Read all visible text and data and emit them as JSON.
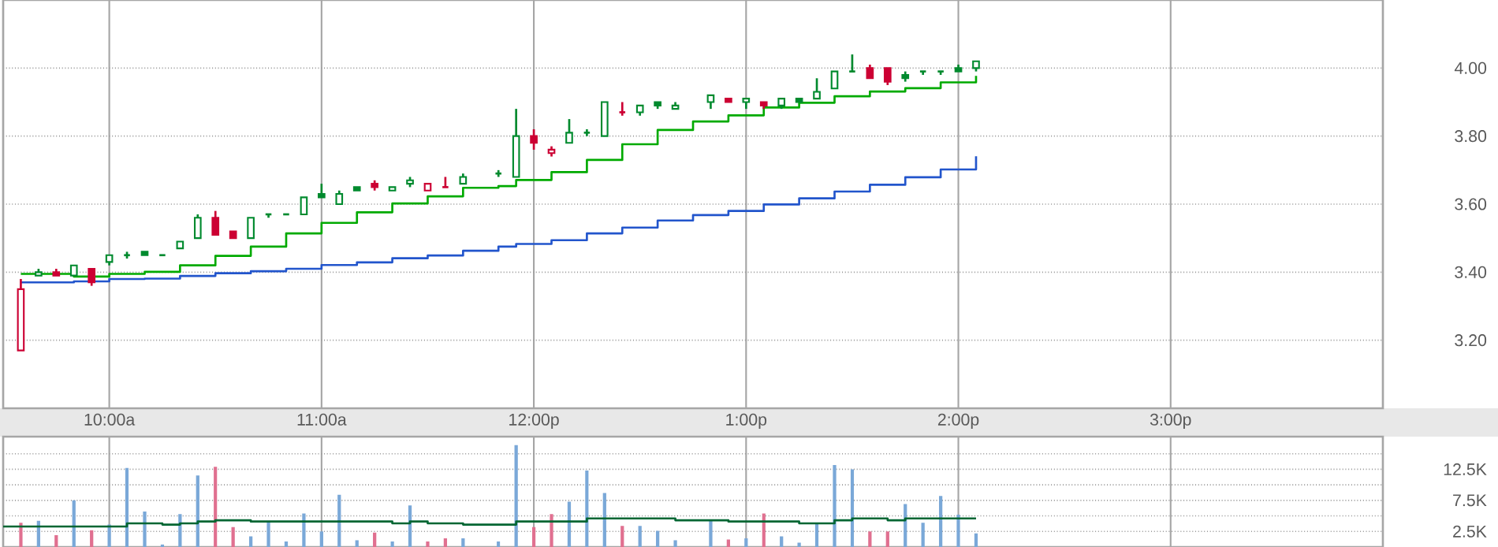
{
  "chart_data": [
    {
      "type": "candlestick",
      "x": [
        9.5833,
        9.6667,
        9.75,
        9.8333,
        9.9167,
        10.0,
        10.0833,
        10.1667,
        10.25,
        10.3333,
        10.4167,
        10.5,
        10.5833,
        10.6667,
        10.75,
        10.8333,
        10.9167,
        11.0,
        11.0833,
        11.1667,
        11.25,
        11.3333,
        11.4167,
        11.5,
        11.5833,
        11.6667,
        11.8333,
        11.9167,
        12.0,
        12.0833,
        12.1667,
        12.25,
        12.3333,
        12.4167,
        12.5,
        12.5833,
        12.6667,
        12.8333,
        12.9167,
        13.0,
        13.0833,
        13.1667,
        13.25,
        13.3333,
        13.4167,
        13.5,
        13.5833,
        13.6667,
        13.75,
        13.8333,
        13.9167,
        14.0,
        14.0833
      ],
      "ohlc": [
        [
          3.17,
          3.38,
          3.17,
          3.35
        ],
        [
          3.39,
          3.41,
          3.39,
          3.4
        ],
        [
          3.4,
          3.41,
          3.39,
          3.39
        ],
        [
          3.39,
          3.42,
          3.39,
          3.42
        ],
        [
          3.41,
          3.41,
          3.36,
          3.37
        ],
        [
          3.43,
          3.45,
          3.42,
          3.45
        ],
        [
          3.45,
          3.46,
          3.44,
          3.45
        ],
        [
          3.46,
          3.46,
          3.45,
          3.45
        ],
        [
          3.45,
          3.45,
          3.45,
          3.45
        ],
        [
          3.47,
          3.49,
          3.47,
          3.49
        ],
        [
          3.5,
          3.57,
          3.5,
          3.56
        ],
        [
          3.56,
          3.58,
          3.51,
          3.51
        ],
        [
          3.52,
          3.52,
          3.5,
          3.5
        ],
        [
          3.5,
          3.56,
          3.5,
          3.56
        ],
        [
          3.57,
          3.57,
          3.56,
          3.57
        ],
        [
          3.57,
          3.57,
          3.57,
          3.57
        ],
        [
          3.57,
          3.62,
          3.57,
          3.62
        ],
        [
          3.63,
          3.66,
          3.62,
          3.62
        ],
        [
          3.6,
          3.64,
          3.6,
          3.63
        ],
        [
          3.65,
          3.65,
          3.64,
          3.64
        ],
        [
          3.66,
          3.67,
          3.64,
          3.65
        ],
        [
          3.64,
          3.65,
          3.64,
          3.65
        ],
        [
          3.66,
          3.68,
          3.65,
          3.67
        ],
        [
          3.64,
          3.66,
          3.64,
          3.66
        ],
        [
          3.65,
          3.68,
          3.65,
          3.65
        ],
        [
          3.66,
          3.69,
          3.66,
          3.68
        ],
        [
          3.69,
          3.7,
          3.68,
          3.69
        ],
        [
          3.68,
          3.88,
          3.68,
          3.8
        ],
        [
          3.8,
          3.82,
          3.76,
          3.78
        ],
        [
          3.75,
          3.77,
          3.74,
          3.76
        ],
        [
          3.78,
          3.85,
          3.78,
          3.81
        ],
        [
          3.81,
          3.82,
          3.8,
          3.81
        ],
        [
          3.8,
          3.9,
          3.8,
          3.9
        ],
        [
          3.87,
          3.9,
          3.86,
          3.87
        ],
        [
          3.87,
          3.89,
          3.86,
          3.89
        ],
        [
          3.9,
          3.9,
          3.88,
          3.89
        ],
        [
          3.88,
          3.9,
          3.88,
          3.89
        ],
        [
          3.9,
          3.92,
          3.88,
          3.92
        ],
        [
          3.91,
          3.91,
          3.9,
          3.9
        ],
        [
          3.9,
          3.91,
          3.88,
          3.91
        ],
        [
          3.9,
          3.9,
          3.88,
          3.89
        ],
        [
          3.89,
          3.91,
          3.88,
          3.91
        ],
        [
          3.91,
          3.91,
          3.9,
          3.9
        ],
        [
          3.91,
          3.97,
          3.91,
          3.93
        ],
        [
          3.94,
          3.99,
          3.94,
          3.99
        ],
        [
          3.99,
          4.04,
          3.99,
          3.99
        ],
        [
          4.0,
          4.01,
          3.97,
          3.97
        ],
        [
          4.0,
          4.0,
          3.95,
          3.96
        ],
        [
          3.98,
          3.99,
          3.96,
          3.97
        ],
        [
          3.99,
          3.99,
          3.98,
          3.99
        ],
        [
          3.99,
          3.99,
          3.98,
          3.99
        ],
        [
          4.0,
          4.01,
          3.99,
          3.99
        ],
        [
          4.0,
          4.02,
          3.99,
          4.02
        ]
      ],
      "colors": [
        "#cc0033",
        "#008a2e",
        "#cc0033",
        "#008a2e",
        "#cc0033",
        "#008a2e",
        "#008a2e",
        "#008a2e",
        "#008a2e",
        "#008a2e",
        "#008a2e",
        "#cc0033",
        "#cc0033",
        "#008a2e",
        "#008a2e",
        "#008a2e",
        "#008a2e",
        "#008a2e",
        "#008a2e",
        "#008a2e",
        "#cc0033",
        "#008a2e",
        "#008a2e",
        "#cc0033",
        "#cc0033",
        "#008a2e",
        "#008a2e",
        "#008a2e",
        "#cc0033",
        "#cc0033",
        "#008a2e",
        "#008a2e",
        "#008a2e",
        "#cc0033",
        "#008a2e",
        "#008a2e",
        "#008a2e",
        "#008a2e",
        "#cc0033",
        "#008a2e",
        "#cc0033",
        "#008a2e",
        "#008a2e",
        "#008a2e",
        "#008a2e",
        "#008a2e",
        "#cc0033",
        "#cc0033",
        "#008a2e",
        "#008a2e",
        "#008a2e",
        "#008a2e",
        "#008a2e"
      ],
      "series": [
        {
          "type": "step",
          "color": "#00aa00",
          "x": [
            9.5833,
            9.8333,
            10.0,
            10.1667,
            10.3333,
            10.5,
            10.6667,
            10.8333,
            11.0,
            11.1667,
            11.3333,
            11.5,
            11.6667,
            11.8333,
            11.9167,
            12.0833,
            12.25,
            12.4167,
            12.5833,
            12.75,
            12.9167,
            13.0833,
            13.25,
            13.4167,
            13.5833,
            13.75,
            13.9167,
            14.0833
          ],
          "values": [
            3.395,
            3.387,
            3.395,
            3.401,
            3.42,
            3.448,
            3.475,
            3.514,
            3.545,
            3.576,
            3.602,
            3.623,
            3.648,
            3.653,
            3.671,
            3.694,
            3.73,
            3.776,
            3.818,
            3.843,
            3.861,
            3.884,
            3.898,
            3.917,
            3.931,
            3.941,
            3.958,
            3.977
          ]
        },
        {
          "type": "step",
          "color": "#2255cc",
          "x": [
            9.5833,
            9.8333,
            10.0,
            10.1667,
            10.3333,
            10.5,
            10.6667,
            10.8333,
            11.0,
            11.1667,
            11.3333,
            11.5,
            11.6667,
            11.8333,
            11.9167,
            12.0833,
            12.25,
            12.4167,
            12.5833,
            12.75,
            12.9167,
            13.0833,
            13.25,
            13.4167,
            13.5833,
            13.75,
            13.9167,
            14.0833
          ],
          "values": [
            3.37,
            3.373,
            3.38,
            3.381,
            3.389,
            3.397,
            3.403,
            3.41,
            3.421,
            3.429,
            3.441,
            3.449,
            3.463,
            3.475,
            3.483,
            3.494,
            3.514,
            3.531,
            3.552,
            3.568,
            3.58,
            3.599,
            3.617,
            3.637,
            3.657,
            3.679,
            3.702,
            3.741
          ]
        }
      ],
      "xlim": [
        9.5,
        16.0
      ],
      "xticks": [
        {
          "value": 10,
          "label": "10:00a"
        },
        {
          "value": 11,
          "label": "11:00a"
        },
        {
          "value": 12,
          "label": "12:00p"
        },
        {
          "value": 13,
          "label": "1:00p"
        },
        {
          "value": 14,
          "label": "2:00p"
        },
        {
          "value": 15,
          "label": "3:00p"
        }
      ],
      "ylim": [
        3.0,
        4.2
      ],
      "yticks": [
        {
          "value": 3.2,
          "label": "3.20"
        },
        {
          "value": 3.4,
          "label": "3.40"
        },
        {
          "value": 3.6,
          "label": "3.60"
        },
        {
          "value": 3.8,
          "label": "3.80"
        },
        {
          "value": 4.0,
          "label": "4.00"
        }
      ],
      "grid": true
    },
    {
      "type": "bar",
      "series": [
        {
          "type": "bar",
          "x": [
            9.5833,
            9.6667,
            9.75,
            9.8333,
            9.9167,
            10.0,
            10.0833,
            10.1667,
            10.25,
            10.3333,
            10.4167,
            10.5,
            10.5833,
            10.6667,
            10.75,
            10.8333,
            10.9167,
            11.0,
            11.0833,
            11.1667,
            11.25,
            11.3333,
            11.4167,
            11.5,
            11.5833,
            11.6667,
            11.8333,
            11.9167,
            12.0,
            12.0833,
            12.1667,
            12.25,
            12.3333,
            12.4167,
            12.5,
            12.5833,
            12.6667,
            12.8333,
            12.9167,
            13.0,
            13.0833,
            13.1667,
            13.25,
            13.3333,
            13.4167,
            13.5,
            13.5833,
            13.6667,
            13.75,
            13.8333,
            13.9167,
            14.0,
            14.0833
          ],
          "values": [
            3900,
            4200,
            1900,
            7500,
            2700,
            3600,
            12700,
            5700,
            400,
            5300,
            11500,
            12900,
            3200,
            1700,
            4000,
            900,
            5400,
            2500,
            8400,
            1100,
            2300,
            900,
            6700,
            900,
            1400,
            1400,
            900,
            16400,
            3200,
            5300,
            7300,
            12300,
            8700,
            3400,
            3400,
            2600,
            1100,
            4400,
            1200,
            1400,
            5400,
            1700,
            700,
            3900,
            13200,
            12500,
            2500,
            2500,
            6900,
            3900,
            8200,
            5200,
            2200
          ],
          "colors": [
            "#e07090",
            "#7aa8d8",
            "#e07090",
            "#7aa8d8",
            "#e07090",
            "#7aa8d8",
            "#7aa8d8",
            "#7aa8d8",
            "#7aa8d8",
            "#7aa8d8",
            "#7aa8d8",
            "#e07090",
            "#e07090",
            "#7aa8d8",
            "#7aa8d8",
            "#7aa8d8",
            "#7aa8d8",
            "#7aa8d8",
            "#7aa8d8",
            "#7aa8d8",
            "#e07090",
            "#7aa8d8",
            "#7aa8d8",
            "#e07090",
            "#e07090",
            "#7aa8d8",
            "#7aa8d8",
            "#7aa8d8",
            "#e07090",
            "#e07090",
            "#7aa8d8",
            "#7aa8d8",
            "#7aa8d8",
            "#e07090",
            "#7aa8d8",
            "#7aa8d8",
            "#7aa8d8",
            "#7aa8d8",
            "#e07090",
            "#7aa8d8",
            "#e07090",
            "#7aa8d8",
            "#7aa8d8",
            "#7aa8d8",
            "#7aa8d8",
            "#7aa8d8",
            "#e07090",
            "#e07090",
            "#7aa8d8",
            "#7aa8d8",
            "#7aa8d8",
            "#7aa8d8",
            "#7aa8d8"
          ]
        },
        {
          "type": "step",
          "color": "#006633",
          "x": [
            9.5,
            10.0,
            10.0833,
            10.25,
            10.3333,
            10.4167,
            10.5,
            10.6667,
            11.3333,
            11.4167,
            11.5,
            11.6667,
            11.9167,
            12.1667,
            12.25,
            12.6667,
            12.9167,
            13.25,
            13.3333,
            13.4167,
            13.5,
            13.6667,
            13.75,
            14.0833
          ],
          "values": [
            3300,
            3300,
            3800,
            3600,
            3800,
            4100,
            4300,
            4100,
            3800,
            4100,
            3800,
            3600,
            4100,
            4100,
            4600,
            4300,
            4100,
            3800,
            3800,
            4300,
            4600,
            4300,
            4600,
            4600
          ]
        }
      ],
      "xlim": [
        9.5,
        16.0
      ],
      "xticks": [
        {
          "value": 10,
          "label": null
        },
        {
          "value": 11,
          "label": null
        },
        {
          "value": 12,
          "label": null
        },
        {
          "value": 13,
          "label": null
        },
        {
          "value": 14,
          "label": null
        },
        {
          "value": 15,
          "label": null
        }
      ],
      "ylim": [
        0,
        17750
      ],
      "yticks": [
        {
          "value": 2500,
          "label": "2.5K"
        },
        {
          "value": 5000,
          "label": null
        },
        {
          "value": 7500,
          "label": "7.5K"
        },
        {
          "value": 10000,
          "label": null
        },
        {
          "value": 12500,
          "label": "12.5K"
        },
        {
          "value": 15000,
          "label": null
        }
      ],
      "tick_labels": "y",
      "grid": true
    }
  ]
}
